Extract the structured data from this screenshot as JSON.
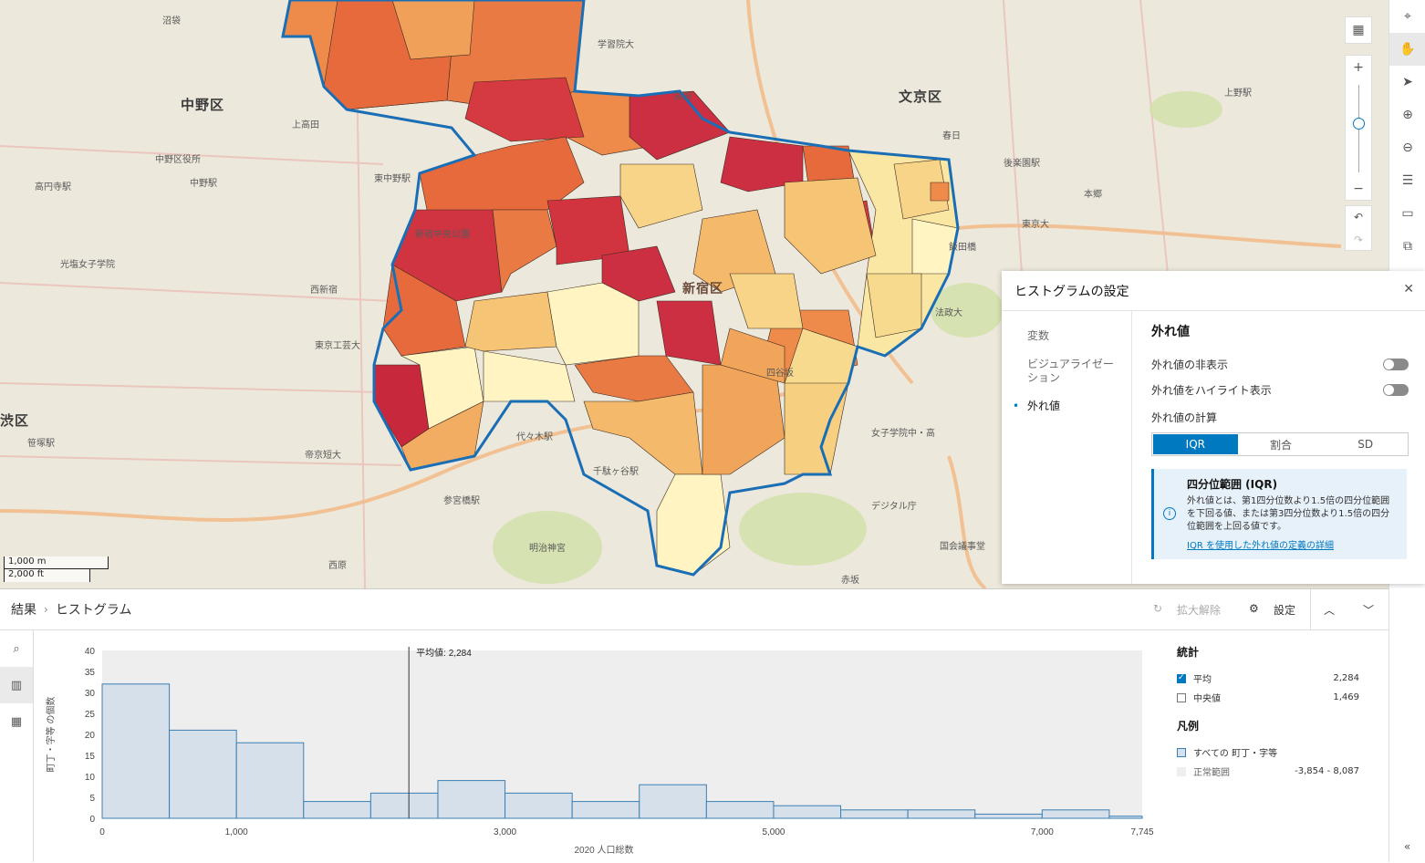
{
  "map": {
    "ward_labels": [
      "中野区",
      "文京区",
      "新宿区",
      "渋区"
    ],
    "place_labels": [
      "沼袋",
      "学習院大",
      "上高田",
      "高田",
      "中野区役所",
      "中野駅",
      "東中野駅",
      "高円寺駅",
      "光塩女子学院",
      "新宿中央公園",
      "東京工芸大",
      "西新宿",
      "代々木駅",
      "千駄ヶ谷駅",
      "参宮橋駅",
      "明治神宮",
      "西原",
      "笹塚駅",
      "帝京短大",
      "本郷",
      "春日",
      "後楽園駅",
      "飯田橋",
      "東京大",
      "上野駅",
      "赤坂",
      "国会議事堂",
      "デジタル庁",
      "女子学院中・高",
      "法政大",
      "四谷坂"
    ],
    "scale": {
      "m": "1,000 m",
      "ft": "2,000 ft"
    },
    "colors": {
      "high": "#c8283c",
      "mid": "#ee8a4a",
      "low": "#fff4c2",
      "boundary": "#1a6eb5"
    }
  },
  "settings": {
    "title": "ヒストグラムの設定",
    "nav": [
      "変数",
      "ビジュアライゼーション",
      "外れ値"
    ],
    "section_title": "外れ値",
    "toggle_hide": "外れ値の非表示",
    "toggle_highlight": "外れ値をハイライト表示",
    "calc_label": "外れ値の計算",
    "calc_options": [
      "IQR",
      "割合",
      "SD"
    ],
    "notice_title": "四分位範囲 (IQR)",
    "notice_text": "外れ値とは、第1四分位数より1.5倍の四分位範囲を下回る値、または第3四分位数より1.5倍の四分位範囲を上回る値です。",
    "notice_link": "IQR を使用した外れ値の定義の詳細"
  },
  "results": {
    "breadcrumb_root": "結果",
    "breadcrumb_current": "ヒストグラム",
    "reset_zoom": "拡大解除",
    "settings": "設定"
  },
  "stats": {
    "title": "統計",
    "mean_label": "平均",
    "mean_value": "2,284",
    "median_label": "中央値",
    "median_value": "1,469",
    "legend_title": "凡例",
    "all_label": "すべての 町丁・字等",
    "normal_label": "正常範囲",
    "normal_value": "-3,854 - 8,087"
  },
  "chart_data": {
    "type": "bar",
    "xlabel": "2020 人口総数",
    "ylabel": "町丁・字等 の個数",
    "x_range": [
      0,
      7745
    ],
    "ylim": [
      0,
      40
    ],
    "yticks": [
      0,
      5,
      10,
      15,
      20,
      25,
      30,
      35,
      40
    ],
    "xticks": [
      "0",
      "1,000",
      "3,000",
      "5,000",
      "7,000",
      "7,745"
    ],
    "xtick_values": [
      0,
      1000,
      3000,
      5000,
      7000,
      7745
    ],
    "bin_width": 500,
    "bins_start": [
      0,
      500,
      1000,
      1500,
      2000,
      2500,
      3000,
      3500,
      4000,
      4500,
      5000,
      5500,
      6000,
      6500,
      7000,
      7500
    ],
    "values": [
      32,
      21,
      18,
      4,
      6,
      9,
      6,
      4,
      8,
      4,
      3,
      2,
      2,
      1,
      2,
      0.5
    ],
    "mean_line": 2284,
    "mean_label": "平均値: 2,284",
    "bar_fill": "#d5e0ea",
    "bar_stroke": "#3b7fb5"
  }
}
